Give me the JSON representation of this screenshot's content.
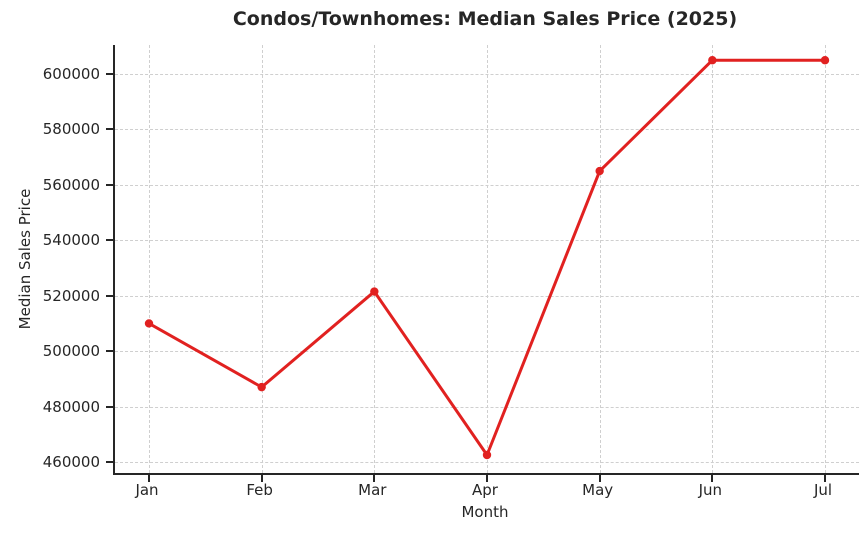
{
  "chart_data": {
    "type": "line",
    "title": "Condos/Townhomes: Median Sales Price (2025)",
    "xlabel": "Month",
    "ylabel": "Median Sales Price",
    "categories": [
      "Jan",
      "Feb",
      "Mar",
      "Apr",
      "May",
      "Jun",
      "Jul"
    ],
    "series": [
      {
        "name": "Median Sales Price",
        "values": [
          510000,
          487000,
          521500,
          462500,
          565000,
          605000,
          605000
        ]
      }
    ],
    "yticks": [
      460000,
      480000,
      500000,
      520000,
      540000,
      560000,
      580000,
      600000
    ],
    "ylim": [
      456000,
      610500
    ],
    "grid": true,
    "grid_style": "dashed",
    "legend_position": "none",
    "colors": {
      "line": "#e12120",
      "marker": "#e12120",
      "grid": "#cfcfcf",
      "axis": "#262626",
      "text": "#262626",
      "background": "#ffffff"
    }
  }
}
